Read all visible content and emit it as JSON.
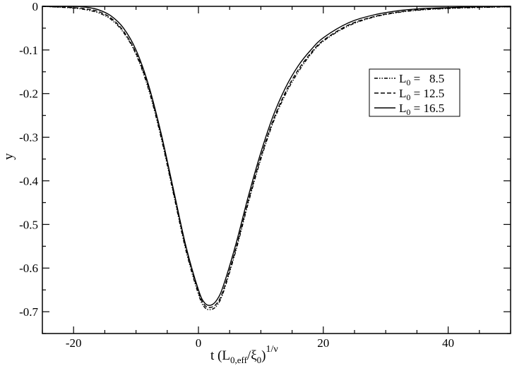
{
  "chart_data": {
    "type": "line",
    "xlabel": {
      "main": "t (L",
      "sub1": "0,eff",
      "mid": "/ξ",
      "sub2": "0",
      "close": ")",
      "sup": "1/ν"
    },
    "ylabel": "y",
    "xlim": [
      -25,
      50
    ],
    "ylim": [
      -0.75,
      0
    ],
    "xticks": [
      -20,
      0,
      20,
      40
    ],
    "xtick_labels": [
      "-20",
      "0",
      "20",
      "40"
    ],
    "yticks": [
      0,
      -0.1,
      -0.2,
      -0.3,
      -0.4,
      -0.5,
      -0.6,
      -0.7
    ],
    "ytick_labels": [
      "0",
      "-0.1",
      "-0.2",
      "-0.3",
      "-0.4",
      "-0.5",
      "-0.6",
      "-0.7"
    ],
    "grid": false,
    "legend_position": "top-right",
    "series": [
      {
        "name": {
          "main": "L",
          "sub": "0",
          "rest": " =   8.5"
        },
        "style": "dash-dot-dot",
        "x": [
          -25,
          -20,
          -18,
          -16,
          -14,
          -12,
          -10,
          -8,
          -6,
          -4,
          -2,
          0,
          1,
          2,
          3,
          4,
          6,
          8,
          10,
          12,
          14,
          16,
          18,
          20,
          24,
          28,
          32,
          36,
          40,
          44,
          50
        ],
        "y": [
          0,
          -0.004,
          -0.008,
          -0.015,
          -0.03,
          -0.06,
          -0.11,
          -0.19,
          -0.3,
          -0.43,
          -0.56,
          -0.66,
          -0.69,
          -0.695,
          -0.685,
          -0.655,
          -0.56,
          -0.45,
          -0.35,
          -0.265,
          -0.2,
          -0.15,
          -0.11,
          -0.08,
          -0.045,
          -0.025,
          -0.014,
          -0.008,
          -0.005,
          -0.003,
          -0.001
        ]
      },
      {
        "name": {
          "main": "L",
          "sub": "0",
          "rest": " = 12.5"
        },
        "style": "dashed",
        "x": [
          -25,
          -20,
          -18,
          -16,
          -14,
          -12,
          -10,
          -8,
          -6,
          -4,
          -2,
          0,
          1,
          2,
          3,
          4,
          6,
          8,
          10,
          12,
          14,
          16,
          18,
          20,
          24,
          28,
          32,
          36,
          40,
          44,
          50
        ],
        "y": [
          0,
          -0.003,
          -0.006,
          -0.012,
          -0.027,
          -0.057,
          -0.107,
          -0.185,
          -0.295,
          -0.425,
          -0.555,
          -0.655,
          -0.685,
          -0.69,
          -0.68,
          -0.65,
          -0.555,
          -0.445,
          -0.345,
          -0.26,
          -0.195,
          -0.145,
          -0.107,
          -0.078,
          -0.043,
          -0.024,
          -0.013,
          -0.007,
          -0.004,
          -0.002,
          -0.001
        ]
      },
      {
        "name": {
          "main": "L",
          "sub": "0",
          "rest": " = 16.5"
        },
        "style": "solid",
        "x": [
          -25,
          -20,
          -18,
          -16,
          -14,
          -12,
          -10,
          -8,
          -6,
          -4,
          -2,
          0,
          1,
          2,
          3,
          4,
          6,
          8,
          10,
          12,
          14,
          16,
          18,
          20,
          24,
          28,
          32,
          36,
          40,
          44,
          50
        ],
        "y": [
          0,
          0,
          -0.002,
          -0.008,
          -0.022,
          -0.05,
          -0.1,
          -0.18,
          -0.29,
          -0.42,
          -0.55,
          -0.65,
          -0.68,
          -0.685,
          -0.672,
          -0.64,
          -0.545,
          -0.435,
          -0.335,
          -0.25,
          -0.185,
          -0.136,
          -0.1,
          -0.072,
          -0.038,
          -0.02,
          -0.01,
          -0.005,
          -0.003,
          -0.001,
          0
        ]
      }
    ]
  }
}
